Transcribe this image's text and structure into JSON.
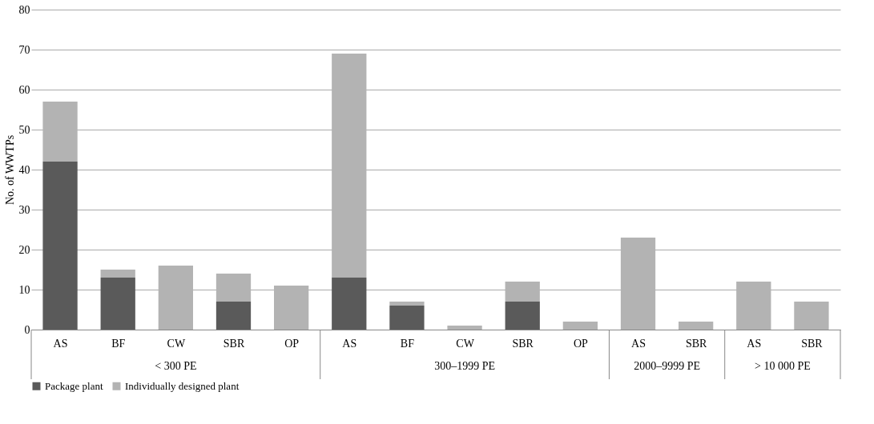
{
  "chart_data": {
    "type": "bar",
    "stacked": true,
    "ylabel": "No. of WWTPs",
    "categories": [
      "AS",
      "BF",
      "CW",
      "SBR",
      "OP",
      "AS",
      "BF",
      "CW",
      "SBR",
      "OP",
      "AS",
      "SBR",
      "AS",
      "SBR"
    ],
    "annotations": [
      "< 300 PE",
      "300–1999 PE",
      "2000–9999 PE",
      "> 10 000 PE"
    ],
    "series": [
      {
        "name": "Package plant",
        "color": "#5a5a5a",
        "values": [
          42,
          13,
          0,
          7,
          0,
          13,
          6,
          0,
          7,
          0,
          0,
          0,
          0,
          0
        ]
      },
      {
        "name": "Individually designed plant",
        "color": "#b3b3b3",
        "values": [
          15,
          2,
          16,
          7,
          11,
          56,
          1,
          1,
          5,
          2,
          23,
          2,
          12,
          7
        ]
      }
    ],
    "ylim": [
      0,
      80
    ],
    "yticks": [
      0,
      10,
      20,
      30,
      40,
      50,
      60,
      70,
      80
    ],
    "grid": "y",
    "legend": "bottom"
  }
}
